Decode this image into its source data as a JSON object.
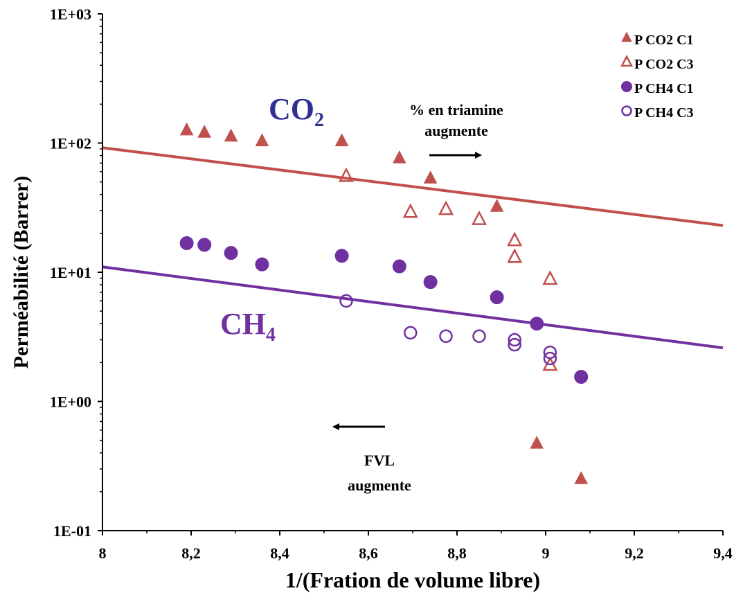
{
  "chart_data": {
    "type": "scatter",
    "xlabel": "1/(Fration de volume libre)",
    "ylabel": "Perméabilité (Barrer)",
    "xlim": [
      8,
      9.4
    ],
    "ylim": [
      0.1,
      1000
    ],
    "yscale": "log",
    "xticks": [
      {
        "v": 8,
        "label": "8"
      },
      {
        "v": 8.2,
        "label": "8,2"
      },
      {
        "v": 8.4,
        "label": "8,4"
      },
      {
        "v": 8.6,
        "label": "8,6"
      },
      {
        "v": 8.8,
        "label": "8,8"
      },
      {
        "v": 9,
        "label": "9"
      },
      {
        "v": 9.2,
        "label": "9,2"
      },
      {
        "v": 9.4,
        "label": "9,4"
      }
    ],
    "yticks": [
      {
        "v": 1000,
        "label": "1E+03"
      },
      {
        "v": 100,
        "label": "1E+02"
      },
      {
        "v": 10,
        "label": "1E+01"
      },
      {
        "v": 1,
        "label": "1E+00"
      },
      {
        "v": 0.1,
        "label": "1E-01"
      }
    ],
    "grid": false,
    "legend_position": "top-right",
    "series": [
      {
        "name": "P CO2 C1",
        "marker": "triangle",
        "filled": true,
        "color": "#c0504d",
        "points": [
          [
            8.19,
            125
          ],
          [
            8.23,
            120
          ],
          [
            8.29,
            112
          ],
          [
            8.36,
            103
          ],
          [
            8.54,
            103
          ],
          [
            8.67,
            76
          ],
          [
            8.74,
            53
          ],
          [
            8.89,
            32
          ],
          [
            8.98,
            0.47
          ],
          [
            9.08,
            0.25
          ]
        ]
      },
      {
        "name": "P CO2 C3",
        "marker": "triangle",
        "filled": false,
        "color": "#c0504d",
        "points": [
          [
            8.55,
            55
          ],
          [
            8.695,
            29
          ],
          [
            8.775,
            30.5
          ],
          [
            8.85,
            25.5
          ],
          [
            8.93,
            17.5
          ],
          [
            8.93,
            13
          ],
          [
            9.01,
            8.8
          ],
          [
            9.01,
            1.9
          ]
        ]
      },
      {
        "name": "P CH4 C1",
        "marker": "circle",
        "filled": true,
        "color": "#7030a0",
        "points": [
          [
            8.19,
            16.8
          ],
          [
            8.23,
            16.3
          ],
          [
            8.29,
            14.1
          ],
          [
            8.36,
            11.5
          ],
          [
            8.54,
            13.4
          ],
          [
            8.67,
            11.1
          ],
          [
            8.74,
            8.4
          ],
          [
            8.89,
            6.4
          ],
          [
            8.98,
            4.0
          ],
          [
            9.08,
            1.55
          ]
        ]
      },
      {
        "name": "P CH4 C3",
        "marker": "circle",
        "filled": false,
        "color": "#7030a0",
        "points": [
          [
            8.55,
            6.0
          ],
          [
            8.695,
            3.4
          ],
          [
            8.775,
            3.2
          ],
          [
            8.85,
            3.2
          ],
          [
            8.93,
            3.0
          ],
          [
            8.93,
            2.75
          ],
          [
            9.01,
            2.4
          ],
          [
            9.01,
            2.15
          ]
        ]
      }
    ],
    "trendlines": [
      {
        "name": "CO2",
        "color": "#c0504d",
        "from": [
          8,
          92
        ],
        "to": [
          9.4,
          23
        ]
      },
      {
        "name": "CH4",
        "color": "#7030a0",
        "from": [
          8,
          11
        ],
        "to": [
          9.4,
          2.6
        ]
      }
    ],
    "annotations": {
      "co2_label": {
        "base": "CO",
        "sub": "2",
        "color": "#2e3192"
      },
      "ch4_label": {
        "base": "CH",
        "sub": "4",
        "color": "#7030a0"
      },
      "triamine_line1": "% en triamine",
      "triamine_line2": "augmente",
      "fvl_line1": "FVL",
      "fvl_line2": "augmente"
    }
  }
}
